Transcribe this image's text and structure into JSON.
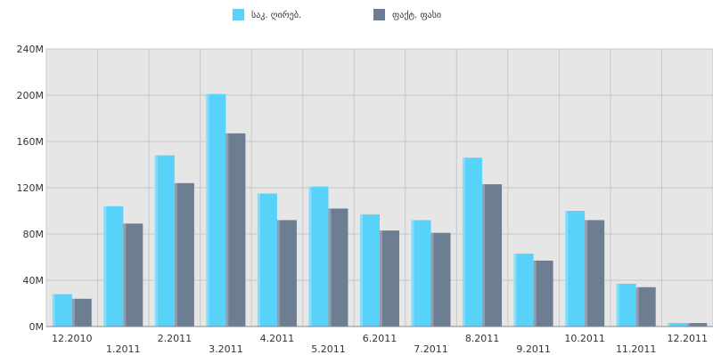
{
  "chart_data": {
    "type": "bar",
    "categories": [
      "12.2010",
      "1.2011",
      "2.2011",
      "3.2011",
      "4.2011",
      "5.2011",
      "6.2011",
      "7.2011",
      "8.2011",
      "9.2011",
      "10.2011",
      "11.2011",
      "12.2011"
    ],
    "series": [
      {
        "name": "საკ. ღირებ.",
        "color": "#59d2f9",
        "values": [
          28,
          104,
          148,
          201,
          115,
          121,
          97,
          92,
          146,
          63,
          100,
          37,
          3
        ]
      },
      {
        "name": "ფაქტ. ფასი",
        "color": "#6d7d92",
        "values": [
          24,
          89,
          124,
          167,
          92,
          102,
          83,
          81,
          123,
          57,
          92,
          34,
          3
        ]
      }
    ],
    "y_ticks": [
      "0M",
      "40M",
      "80M",
      "120M",
      "160M",
      "200M",
      "240M"
    ],
    "ylim": [
      0,
      240
    ],
    "grid": true,
    "legend_position": "top"
  }
}
